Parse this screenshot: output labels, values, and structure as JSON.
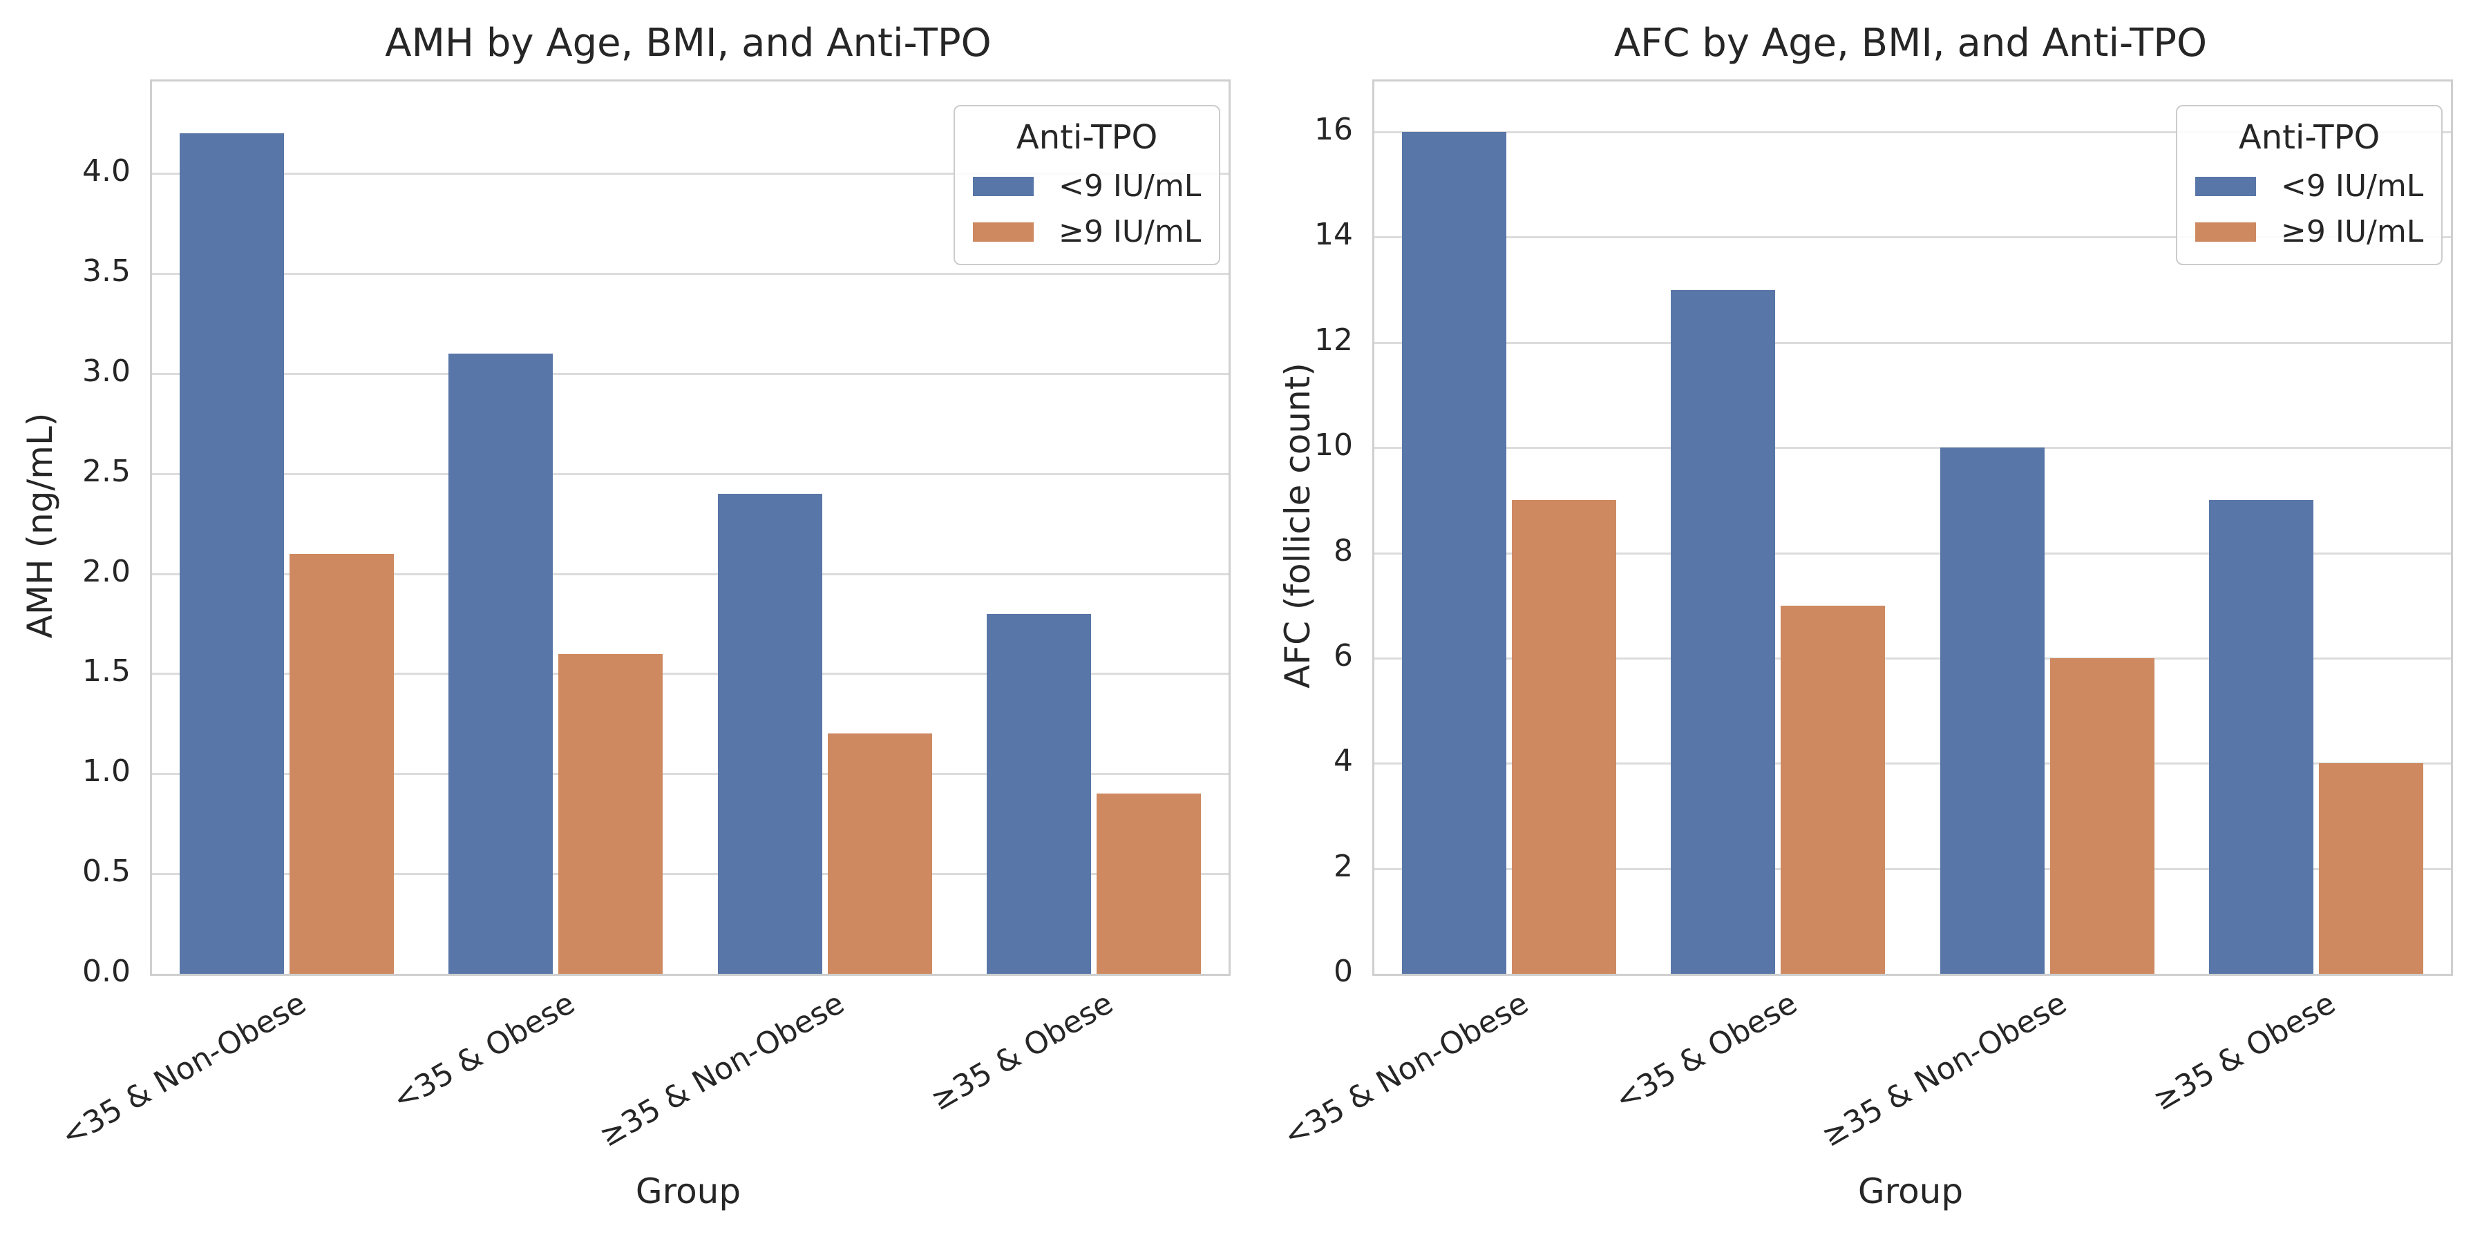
{
  "figure": {
    "background": "#FFFFFF",
    "grid_color": "#DCDCDC",
    "spine_color": "#CFCFCF",
    "text_color": "#262626",
    "grid": "on"
  },
  "legend": {
    "title": "Anti-TPO",
    "position": "upper right",
    "items": [
      {
        "label": "<9 IU/mL",
        "color": "#5876A8"
      },
      {
        "label": "≥9 IU/mL",
        "color": "#CE8960"
      }
    ]
  },
  "chart_data": [
    {
      "type": "bar",
      "title": "AMH by Age, BMI, and Anti-TPO",
      "xlabel": "Group",
      "ylabel": "AMH (ng/mL)",
      "categories": [
        "<35 & Non-Obese",
        "<35 & Obese",
        "≥35 & Non-Obese",
        "≥35 & Obese"
      ],
      "series": [
        {
          "name": "<9 IU/mL",
          "values": [
            4.2,
            3.1,
            2.4,
            1.8
          ]
        },
        {
          "name": "≥9 IU/mL",
          "values": [
            2.1,
            1.6,
            1.2,
            0.9
          ]
        }
      ],
      "ylim": [
        0,
        4.46
      ],
      "yticks": [
        0,
        0.5,
        1.0,
        1.5,
        2.0,
        2.5,
        3.0,
        3.5,
        4.0
      ],
      "yticklabels": [
        "0.0",
        "0.5",
        "1.0",
        "1.5",
        "2.0",
        "2.5",
        "3.0",
        "3.5",
        "4.0"
      ],
      "grid": true,
      "legend_position": "upper right"
    },
    {
      "type": "bar",
      "title": "AFC by Age, BMI, and Anti-TPO",
      "xlabel": "Group",
      "ylabel": "AFC (follicle count)",
      "categories": [
        "<35 & Non-Obese",
        "<35 & Obese",
        "≥35 & Non-Obese",
        "≥35 & Obese"
      ],
      "series": [
        {
          "name": "<9 IU/mL",
          "values": [
            16,
            13,
            10,
            9
          ]
        },
        {
          "name": "≥9 IU/mL",
          "values": [
            9,
            7,
            6,
            4
          ]
        }
      ],
      "ylim": [
        0,
        16.96
      ],
      "yticks": [
        0,
        2,
        4,
        6,
        8,
        10,
        12,
        14,
        16
      ],
      "yticklabels": [
        "0",
        "2",
        "4",
        "6",
        "8",
        "10",
        "12",
        "14",
        "16"
      ],
      "grid": true,
      "legend_position": "upper right"
    }
  ]
}
